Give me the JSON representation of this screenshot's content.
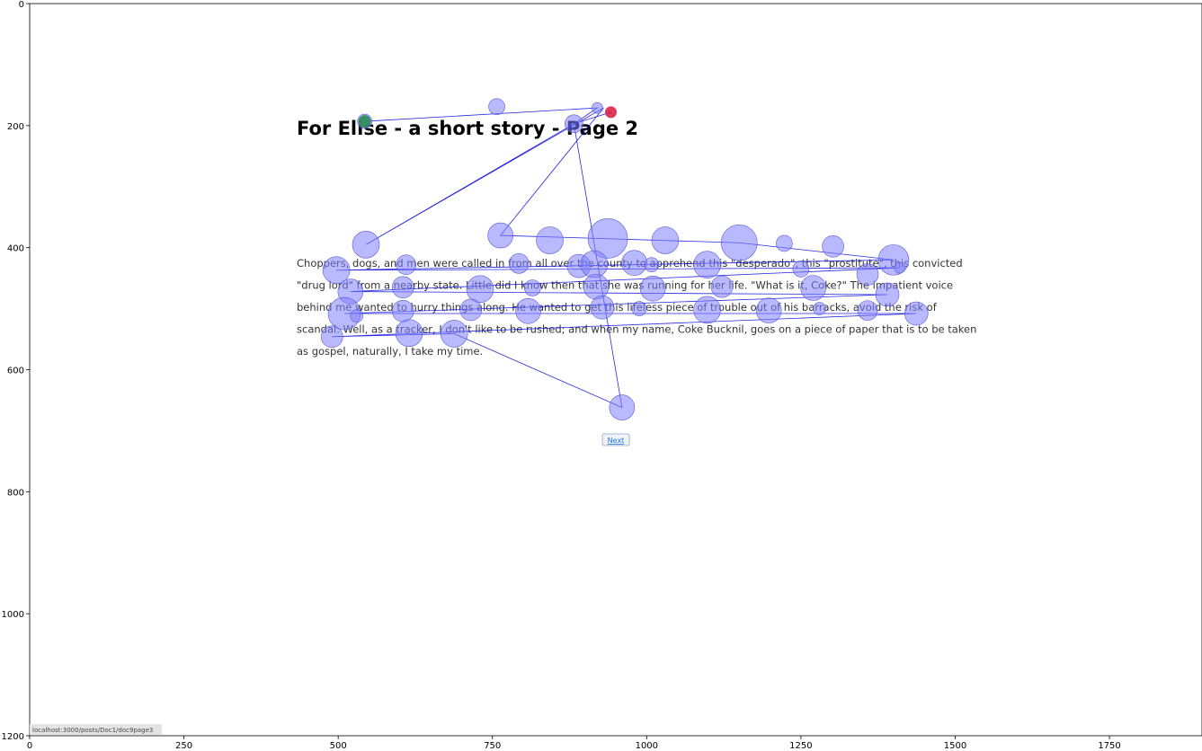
{
  "page": {
    "title": "For Elise - a short story - Page 2",
    "body_lines": [
      "Choppers, dogs, and men were called in from all over the county to apprehend this \"desperado\", this \"prostitute\", this convicted",
      "\"drug lord\" from a nearby state. Little did I know then that she was running for her life. \"What is it, Coke?\" The impatient voice",
      "behind me wanted to hurry things along. He wanted to get this lifeless piece of trouble out of his barracks, avoid the risk of",
      "scandal. Well, as a tracker, I don't like to be rushed; and when my name, Coke Bucknil, goes on a piece of paper that is to be taken",
      "as gospel, naturally, I take my time."
    ],
    "next_label": "Next",
    "status_url": "localhost:3000/posts/Doc1/doc9page3"
  },
  "colors": {
    "fixation": "#8080ff",
    "saccade": "#0000dd",
    "start": "#2e8b57",
    "end": "#dc143c"
  },
  "chart_data": {
    "type": "scatter",
    "title": "",
    "xlabel": "",
    "ylabel": "",
    "xlim": [
      0,
      1900
    ],
    "ylim": [
      1200,
      0
    ],
    "xticks": [
      0,
      250,
      500,
      750,
      1000,
      1250,
      1500,
      1750
    ],
    "yticks": [
      0,
      200,
      400,
      600,
      800,
      1000,
      1200
    ],
    "grid": false,
    "start_point": {
      "x": 543,
      "y": 193
    },
    "end_point": {
      "x": 942,
      "y": 178
    },
    "fixations": [
      {
        "x": 543,
        "y": 193,
        "d": 8
      },
      {
        "x": 757,
        "y": 169,
        "d": 9
      },
      {
        "x": 920,
        "y": 171,
        "d": 6
      },
      {
        "x": 882,
        "y": 197,
        "d": 10
      },
      {
        "x": 545,
        "y": 395,
        "d": 15
      },
      {
        "x": 763,
        "y": 380,
        "d": 14
      },
      {
        "x": 843,
        "y": 388,
        "d": 15
      },
      {
        "x": 937,
        "y": 385,
        "d": 22
      },
      {
        "x": 1030,
        "y": 388,
        "d": 15
      },
      {
        "x": 1150,
        "y": 392,
        "d": 20
      },
      {
        "x": 1223,
        "y": 393,
        "d": 9
      },
      {
        "x": 1302,
        "y": 398,
        "d": 12
      },
      {
        "x": 1400,
        "y": 420,
        "d": 17
      },
      {
        "x": 497,
        "y": 437,
        "d": 15
      },
      {
        "x": 610,
        "y": 428,
        "d": 11
      },
      {
        "x": 793,
        "y": 426,
        "d": 11
      },
      {
        "x": 890,
        "y": 430,
        "d": 13
      },
      {
        "x": 915,
        "y": 427,
        "d": 15
      },
      {
        "x": 980,
        "y": 425,
        "d": 14
      },
      {
        "x": 1008,
        "y": 428,
        "d": 8
      },
      {
        "x": 1098,
        "y": 428,
        "d": 15
      },
      {
        "x": 1250,
        "y": 435,
        "d": 9
      },
      {
        "x": 1358,
        "y": 444,
        "d": 12
      },
      {
        "x": 1410,
        "y": 433,
        "d": 6
      },
      {
        "x": 520,
        "y": 472,
        "d": 14
      },
      {
        "x": 605,
        "y": 465,
        "d": 12
      },
      {
        "x": 730,
        "y": 468,
        "d": 15
      },
      {
        "x": 815,
        "y": 466,
        "d": 9
      },
      {
        "x": 918,
        "y": 464,
        "d": 14
      },
      {
        "x": 1010,
        "y": 467,
        "d": 14
      },
      {
        "x": 1122,
        "y": 464,
        "d": 12
      },
      {
        "x": 1270,
        "y": 466,
        "d": 14
      },
      {
        "x": 1390,
        "y": 477,
        "d": 13
      },
      {
        "x": 510,
        "y": 508,
        "d": 18
      },
      {
        "x": 530,
        "y": 512,
        "d": 7
      },
      {
        "x": 605,
        "y": 504,
        "d": 12
      },
      {
        "x": 715,
        "y": 502,
        "d": 12
      },
      {
        "x": 808,
        "y": 504,
        "d": 14
      },
      {
        "x": 928,
        "y": 498,
        "d": 13
      },
      {
        "x": 988,
        "y": 500,
        "d": 8
      },
      {
        "x": 1098,
        "y": 502,
        "d": 15
      },
      {
        "x": 1198,
        "y": 503,
        "d": 14
      },
      {
        "x": 1280,
        "y": 500,
        "d": 7
      },
      {
        "x": 1358,
        "y": 503,
        "d": 11
      },
      {
        "x": 1437,
        "y": 508,
        "d": 13
      },
      {
        "x": 490,
        "y": 546,
        "d": 12
      },
      {
        "x": 615,
        "y": 540,
        "d": 15
      },
      {
        "x": 688,
        "y": 541,
        "d": 15
      },
      {
        "x": 960,
        "y": 662,
        "d": 14
      }
    ],
    "saccades": [
      [
        543,
        193
      ],
      [
        920,
        171
      ],
      [
        882,
        197
      ],
      [
        545,
        395
      ],
      [
        930,
        171
      ],
      [
        763,
        380
      ],
      [
        1150,
        392
      ],
      [
        1400,
        420
      ],
      [
        497,
        437
      ],
      [
        1410,
        433
      ],
      [
        520,
        472
      ],
      [
        1390,
        477
      ],
      [
        510,
        508
      ],
      [
        1437,
        508
      ],
      [
        490,
        546
      ],
      [
        688,
        541
      ],
      [
        960,
        662
      ],
      [
        882,
        197
      ],
      [
        942,
        178
      ]
    ]
  }
}
